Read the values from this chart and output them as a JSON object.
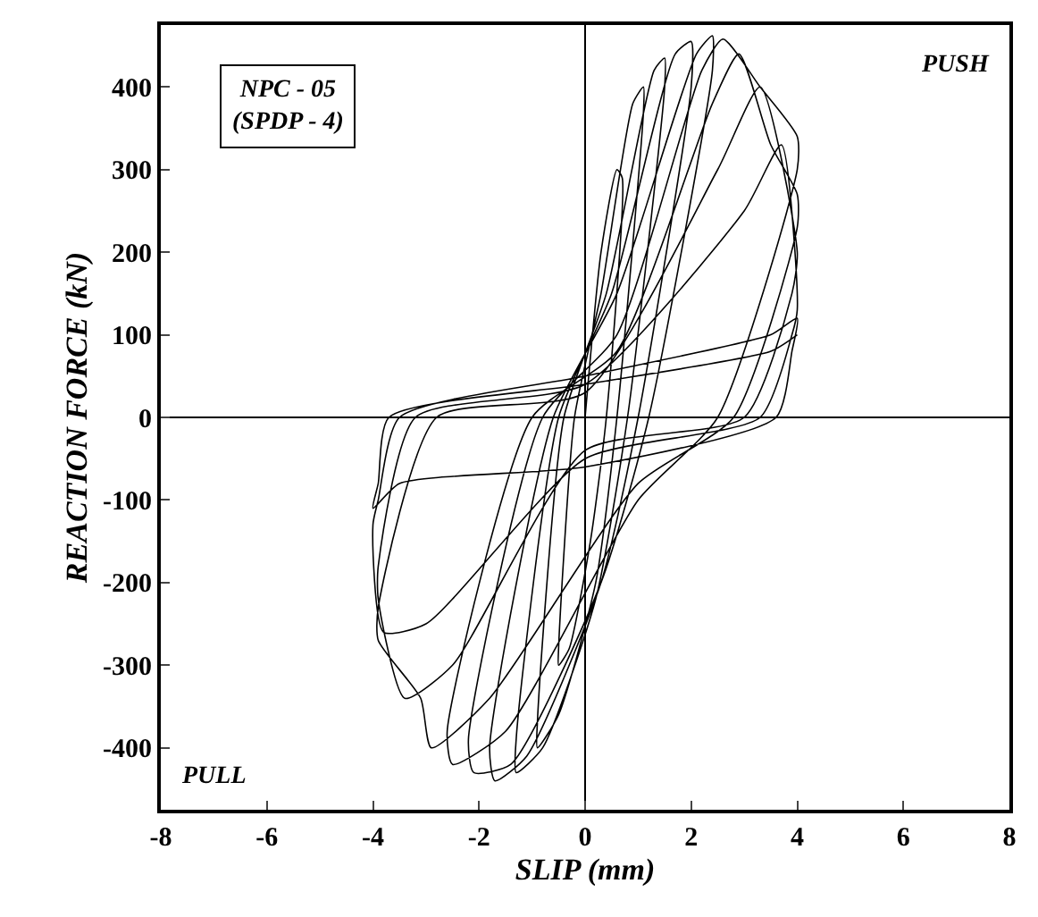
{
  "chart_data": {
    "type": "line",
    "xlabel": "SLIP (mm)",
    "ylabel": "REACTION FORCE (kN)",
    "xlim": [
      -8,
      8
    ],
    "xticks": [
      -8,
      -6,
      -4,
      -2,
      0,
      2,
      4,
      6,
      8
    ],
    "ylim": [
      -475,
      475
    ],
    "yticks": [
      -400,
      -300,
      -200,
      -100,
      0,
      100,
      200,
      300,
      400
    ],
    "marker": "none",
    "line_style": "solid",
    "annotations": [
      "NPC - 05\n(SPDP - 4)",
      "PUSH",
      "PULL"
    ],
    "series": [
      {
        "color": "#000000",
        "x": [
          0,
          0.3,
          0.6,
          0.7,
          0.4,
          0.1,
          -0.3,
          -0.5,
          -0.5,
          -0.2,
          0.3,
          0.9,
          1.1,
          1.1,
          0.6,
          0.2,
          -0.5,
          -0.9,
          -0.9,
          -0.4,
          0.4,
          1.3,
          1.5,
          1.5,
          0.8,
          0.2,
          -0.8,
          -1.3,
          -1.3,
          -0.5,
          0.5,
          1.7,
          2.0,
          2.0,
          1.0,
          0.3,
          -1.1,
          -1.7,
          -1.8,
          -0.6,
          0.6,
          2.1,
          2.4,
          2.4,
          1.2,
          0.3,
          -1.4,
          -2.1,
          -2.2,
          -0.8,
          0.6,
          2.2,
          2.6,
          3.3,
          4.0,
          4.0,
          2.5,
          1.0,
          -1.5,
          -2.5,
          -2.6,
          -1.0,
          0.6,
          2.4,
          2.9,
          3.5,
          4.0,
          4.0,
          2.8,
          1.0,
          -1.8,
          -2.9,
          -3.1,
          -3.9,
          -3.9,
          -2.8,
          0,
          2.5,
          3.3,
          4.0,
          3.9,
          3.0,
          0,
          -2.5,
          -3.4,
          -3.9,
          -3.9,
          -3.2,
          0,
          3.0,
          3.7,
          4.0,
          3.9,
          3.3,
          0,
          -3.0,
          -3.8,
          -4.0,
          -3.9,
          -3.5,
          0,
          3.5,
          4.0,
          3.9,
          3.6,
          0,
          -3.5,
          -4.0,
          -3.9,
          -3.7,
          0,
          3.5,
          4.0
        ],
        "values": [
          0,
          200,
          300,
          290,
          0,
          -150,
          -280,
          -300,
          -280,
          0,
          150,
          380,
          400,
          370,
          0,
          -200,
          -360,
          -400,
          -370,
          0,
          150,
          420,
          435,
          400,
          0,
          -220,
          -400,
          -430,
          -390,
          0,
          150,
          440,
          455,
          400,
          0,
          -200,
          -410,
          -440,
          -400,
          0,
          150,
          440,
          462,
          420,
          0,
          -200,
          -420,
          -430,
          -390,
          0,
          100,
          420,
          458,
          400,
          340,
          300,
          0,
          -100,
          -380,
          -420,
          -380,
          0,
          80,
          380,
          440,
          330,
          270,
          230,
          0,
          -80,
          -340,
          -400,
          -340,
          -270,
          -230,
          0,
          30,
          300,
          400,
          200,
          150,
          0,
          -40,
          -300,
          -340,
          -220,
          -180,
          0,
          40,
          250,
          330,
          130,
          100,
          0,
          -50,
          -250,
          -260,
          -130,
          -100,
          0,
          50,
          100,
          120,
          80,
          0,
          -60,
          -80,
          -110,
          -80,
          0,
          40,
          80,
          100
        ]
      }
    ]
  }
}
